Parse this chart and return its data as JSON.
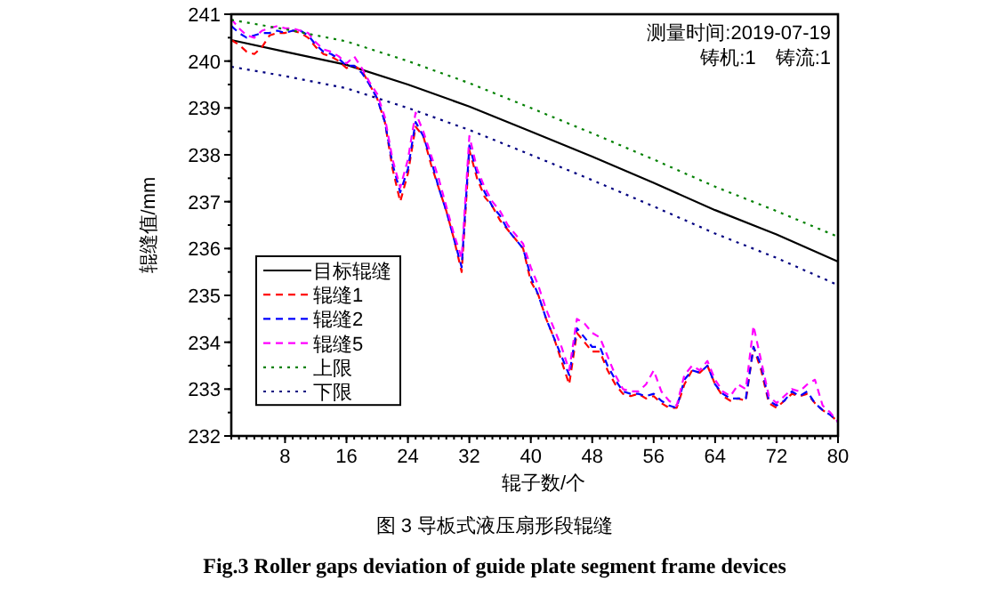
{
  "chart_data": {
    "type": "line",
    "title": "图 3  导板式液压扇形段辊缝",
    "subtitle": "**Fig.3 Roller gaps deviation of guide plate segment frame devices**",
    "xlabel": "辊子数/个",
    "ylabel": "辊缝值/mm",
    "annotations": [
      "测量时间:2019-07-19",
      "铸机:1　铸流:1"
    ],
    "xlim": [
      1,
      80
    ],
    "xticks": [
      8,
      16,
      24,
      32,
      40,
      48,
      56,
      64,
      72,
      80
    ],
    "ylim": [
      232,
      241
    ],
    "yticks": [
      232,
      233,
      234,
      235,
      236,
      237,
      238,
      239,
      240,
      241
    ],
    "grid": false,
    "legend": "bottom left",
    "marker": "none",
    "x": [
      1,
      2,
      3,
      4,
      5,
      6,
      7,
      8,
      9,
      10,
      11,
      12,
      13,
      14,
      15,
      16,
      17,
      18,
      19,
      20,
      21,
      22,
      23,
      24,
      25,
      26,
      27,
      28,
      29,
      30,
      31,
      32,
      33,
      34,
      35,
      36,
      37,
      38,
      39,
      40,
      41,
      42,
      43,
      44,
      45,
      46,
      47,
      48,
      49,
      50,
      51,
      52,
      53,
      54,
      55,
      56,
      57,
      58,
      59,
      60,
      61,
      62,
      63,
      64,
      65,
      66,
      67,
      68,
      69,
      70,
      71,
      72,
      73,
      74,
      75,
      76,
      77,
      78,
      79,
      80
    ],
    "series": [
      {
        "name": "目标辊缝",
        "color": "#000000",
        "line_style": "solid",
        "x": [
          1,
          8,
          16,
          24,
          32,
          40,
          48,
          56,
          64,
          72,
          80
        ],
        "values": [
          240.45,
          240.2,
          239.92,
          239.5,
          239.03,
          238.5,
          237.96,
          237.4,
          236.82,
          236.3,
          235.72
        ]
      },
      {
        "name": "辊缝1",
        "color": "#ff0000",
        "line_style": "dashed",
        "values": [
          240.45,
          240.35,
          240.2,
          240.15,
          240.3,
          240.55,
          240.6,
          240.6,
          240.65,
          240.6,
          240.5,
          240.3,
          240.15,
          240.1,
          240.0,
          239.85,
          239.9,
          239.8,
          239.5,
          239.2,
          238.7,
          237.7,
          237.0,
          237.6,
          238.6,
          238.4,
          237.8,
          237.3,
          236.8,
          236.2,
          235.5,
          238.1,
          237.5,
          237.1,
          236.9,
          236.6,
          236.4,
          236.2,
          236.0,
          235.3,
          235.0,
          234.5,
          234.1,
          233.6,
          233.1,
          234.2,
          234.0,
          233.8,
          233.8,
          233.4,
          233.1,
          232.9,
          232.85,
          232.9,
          232.8,
          232.85,
          232.7,
          232.6,
          232.6,
          233.1,
          233.4,
          233.35,
          233.5,
          233.1,
          232.85,
          232.75,
          232.8,
          232.75,
          233.9,
          233.4,
          232.7,
          232.6,
          232.75,
          232.9,
          232.85,
          232.9,
          232.7,
          232.55,
          232.45,
          232.3
        ]
      },
      {
        "name": "辊缝2",
        "color": "#0000ff",
        "line_style": "dashed",
        "values": [
          240.75,
          240.6,
          240.5,
          240.55,
          240.6,
          240.6,
          240.65,
          240.6,
          240.65,
          240.65,
          240.55,
          240.35,
          240.2,
          240.15,
          240.05,
          239.9,
          239.9,
          239.75,
          239.5,
          239.2,
          238.7,
          237.8,
          237.2,
          237.7,
          238.7,
          238.4,
          237.9,
          237.3,
          236.8,
          236.2,
          235.6,
          238.2,
          237.6,
          237.2,
          236.9,
          236.7,
          236.4,
          236.2,
          236.0,
          235.4,
          235.0,
          234.5,
          234.1,
          233.7,
          233.3,
          234.3,
          234.1,
          233.9,
          233.9,
          233.5,
          233.2,
          232.95,
          232.9,
          232.9,
          232.85,
          232.9,
          232.75,
          232.65,
          232.6,
          233.2,
          233.4,
          233.35,
          233.5,
          233.1,
          232.9,
          232.8,
          232.8,
          232.8,
          233.9,
          233.5,
          232.75,
          232.65,
          232.75,
          232.95,
          232.85,
          232.95,
          232.7,
          232.55,
          232.45,
          232.3
        ]
      },
      {
        "name": "辊缝5",
        "color": "#ff00ff",
        "line_style": "dashed",
        "values": [
          240.9,
          240.7,
          240.55,
          240.5,
          240.65,
          240.7,
          240.75,
          240.7,
          240.7,
          240.65,
          240.6,
          240.4,
          240.25,
          240.2,
          240.1,
          239.95,
          240.1,
          239.85,
          239.55,
          239.3,
          238.8,
          237.9,
          237.3,
          237.9,
          238.9,
          238.5,
          238.0,
          237.5,
          236.9,
          236.3,
          235.8,
          238.4,
          237.7,
          237.3,
          237.0,
          236.8,
          236.5,
          236.3,
          236.1,
          235.6,
          235.2,
          234.7,
          234.3,
          233.9,
          233.4,
          234.5,
          234.4,
          234.2,
          234.1,
          233.7,
          233.3,
          233.0,
          232.95,
          232.95,
          233.1,
          233.4,
          232.95,
          232.75,
          232.65,
          233.3,
          233.5,
          233.4,
          233.6,
          233.2,
          232.95,
          232.85,
          233.1,
          233.0,
          234.35,
          233.6,
          232.85,
          232.7,
          232.85,
          233.0,
          232.95,
          233.1,
          233.2,
          232.65,
          232.5,
          232.3
        ]
      },
      {
        "name": "上限",
        "color": "#008000",
        "line_style": "dotted",
        "x": [
          1,
          8,
          16,
          24,
          32,
          40,
          48,
          56,
          64,
          72,
          80
        ],
        "values": [
          240.88,
          240.68,
          240.42,
          240.0,
          239.53,
          239.0,
          238.46,
          237.9,
          237.32,
          236.8,
          236.25
        ]
      },
      {
        "name": "下限",
        "color": "#000080",
        "line_style": "dotted",
        "x": [
          1,
          8,
          16,
          24,
          32,
          40,
          48,
          56,
          64,
          72,
          80
        ],
        "values": [
          239.88,
          239.68,
          239.42,
          239.0,
          238.53,
          238.0,
          237.46,
          236.9,
          236.32,
          235.8,
          235.22
        ]
      }
    ]
  }
}
